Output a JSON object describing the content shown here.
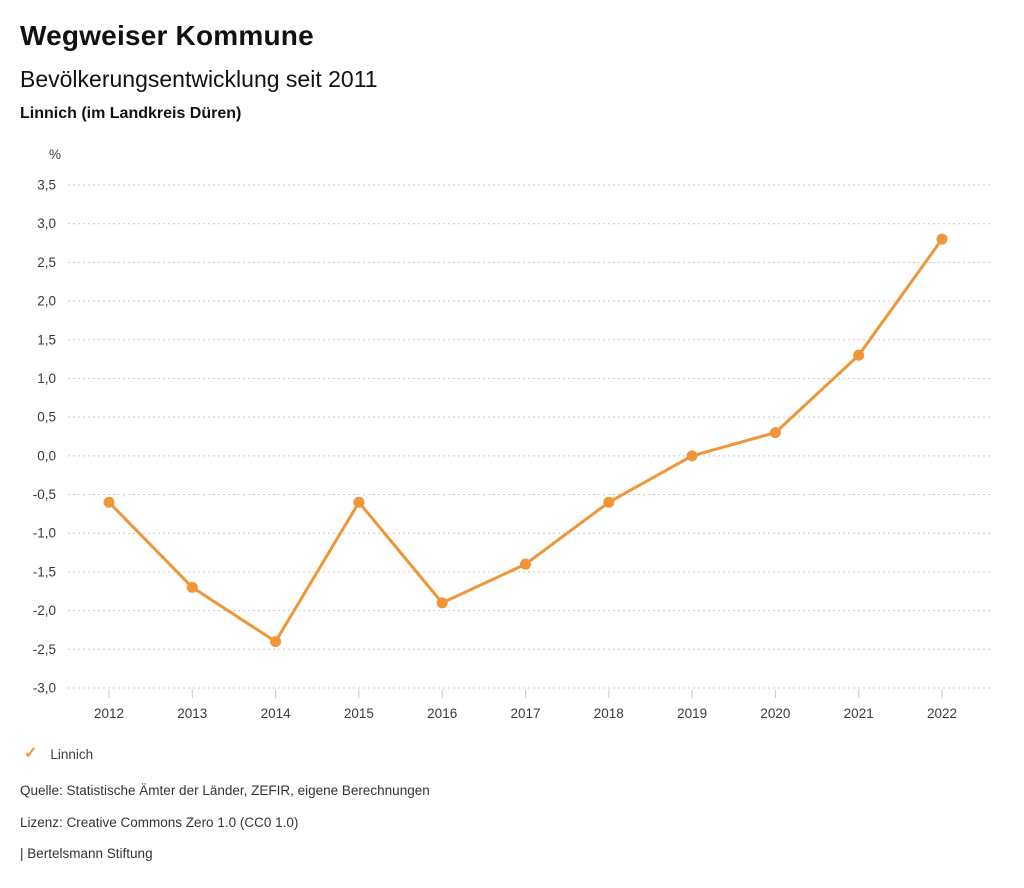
{
  "header": {
    "title": "Wegweiser Kommune",
    "subtitle": "Bevölkerungsentwicklung seit 2011",
    "region": "Linnich (im Landkreis Düren)"
  },
  "chart_data": {
    "type": "line",
    "title": "Bevölkerungsentwicklung seit 2011",
    "unit": "%",
    "categories": [
      "2012",
      "2013",
      "2014",
      "2015",
      "2016",
      "2017",
      "2018",
      "2019",
      "2020",
      "2021",
      "2022"
    ],
    "series": [
      {
        "name": "Linnich",
        "values": [
          -0.6,
          -1.7,
          -2.4,
          -0.6,
          -1.9,
          -1.4,
          -0.6,
          0.0,
          0.3,
          1.3,
          2.8
        ]
      }
    ],
    "ylim": [
      -3.0,
      3.5
    ],
    "ytick_step": 0.5,
    "ytick_labels": [
      "3,5",
      "3,0",
      "2,5",
      "2,0",
      "1,5",
      "1,0",
      "0,5",
      "0,0",
      "-0,5",
      "-1,0",
      "-1,5",
      "-2,0",
      "-2,5",
      "-3,0"
    ],
    "grid": "horizontal-dotted",
    "legend_position": "bottom-left"
  },
  "legend": {
    "items": [
      {
        "label": "Linnich",
        "checked": true
      }
    ]
  },
  "footer": {
    "source": "Quelle: Statistische Ämter der Länder, ZEFIR, eigene Berechnungen",
    "license": "Lizenz: Creative Commons Zero 1.0 (CC0 1.0)",
    "attribution": "| Bertelsmann Stiftung"
  },
  "colors": {
    "series": "#ee9638",
    "grid": "#c9c9c9",
    "axis_text": "#3a3a3a",
    "footer_text": "#333333"
  }
}
